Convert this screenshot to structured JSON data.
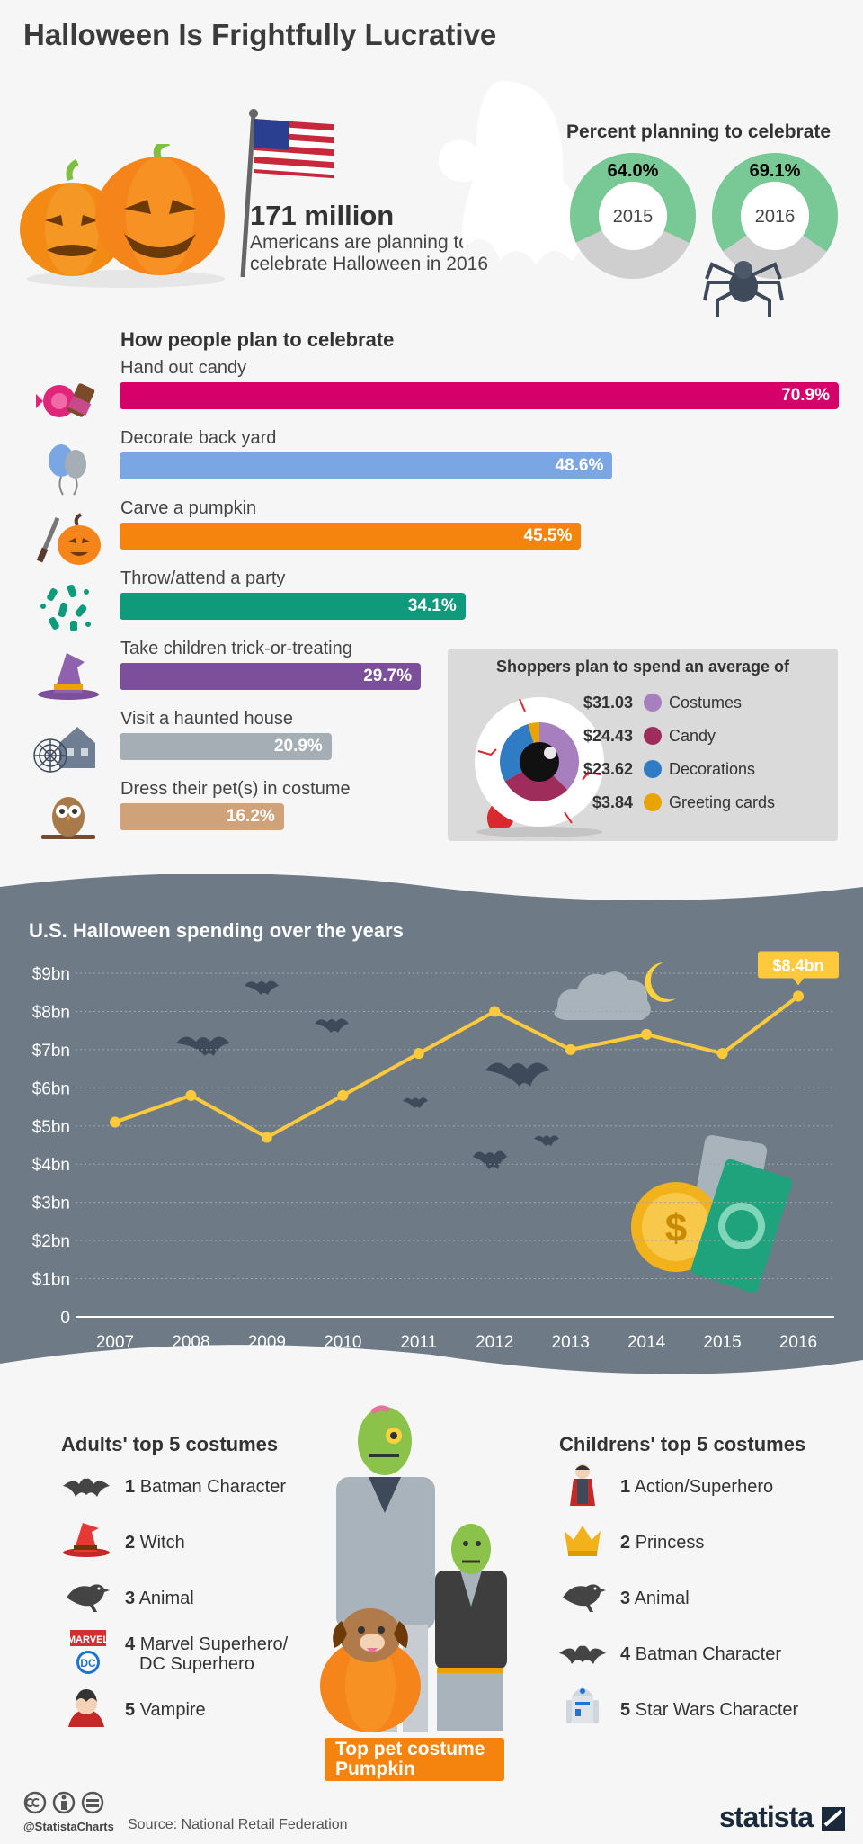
{
  "title": "Halloween Is Frightfully Lucrative",
  "headline": {
    "number": "171 million",
    "description": "Americans are planning to celebrate Halloween in 2016"
  },
  "planning": {
    "title": "Percent planning to celebrate",
    "rings": [
      {
        "year": "2015",
        "value": 64.0,
        "label": "64.0%"
      },
      {
        "year": "2016",
        "value": 69.1,
        "label": "69.1%"
      }
    ]
  },
  "celebrate": {
    "title": "How people plan to celebrate",
    "items": [
      {
        "label": "Hand out candy",
        "value": 70.9,
        "value_label": "70.9%",
        "color": "#d5006a",
        "icon": "candy-icon"
      },
      {
        "label": "Decorate back yard",
        "value": 48.6,
        "value_label": "48.6%",
        "color": "#7aa7e3",
        "icon": "balloons-icon"
      },
      {
        "label": "Carve a pumpkin",
        "value": 45.5,
        "value_label": "45.5%",
        "color": "#f5840f",
        "icon": "pumpkin-knife-icon"
      },
      {
        "label": "Throw/attend a party",
        "value": 34.1,
        "value_label": "34.1%",
        "color": "#0f9a7c",
        "icon": "confetti-icon"
      },
      {
        "label": "Take children trick-or-treating",
        "value": 29.7,
        "value_label": "29.7%",
        "color": "#7b4f9a",
        "icon": "witch-hat-icon"
      },
      {
        "label": "Visit a haunted house",
        "value": 20.9,
        "value_label": "20.9%",
        "color": "#a5adb5",
        "icon": "haunted-house-icon"
      },
      {
        "label": "Dress their pet(s) in costume",
        "value": 16.2,
        "value_label": "16.2%",
        "color": "#cfa27a",
        "icon": "owl-icon"
      }
    ]
  },
  "spending_avg": {
    "title": "Shoppers plan to spend an average of",
    "items": [
      {
        "amount": "$31.03",
        "value": 31.03,
        "name": "Costumes",
        "color": "#a77fbf"
      },
      {
        "amount": "$24.43",
        "value": 24.43,
        "name": "Candy",
        "color": "#9e2d5c"
      },
      {
        "amount": "$23.62",
        "value": 23.62,
        "name": "Decorations",
        "color": "#2f7cc4"
      },
      {
        "amount": "$3.84",
        "value": 3.84,
        "name": "Greeting cards",
        "color": "#e9a400"
      }
    ]
  },
  "chart_data": {
    "type": "line",
    "title": "U.S. Halloween spending over the years",
    "x": [
      "2007",
      "2008",
      "2009",
      "2010",
      "2011",
      "2012",
      "2013",
      "2014",
      "2015",
      "2016"
    ],
    "series": [
      {
        "values": [
          5.1,
          5.8,
          4.7,
          5.8,
          6.9,
          8.0,
          7.0,
          7.4,
          6.9,
          8.4
        ]
      }
    ],
    "ylim": [
      0,
      9
    ],
    "y_ticks": [
      "0",
      "$1bn",
      "$2bn",
      "$3bn",
      "$4bn",
      "$5bn",
      "$6bn",
      "$7bn",
      "$8bn",
      "$9bn"
    ],
    "annotation": "$8.4bn",
    "grid": true,
    "line_color": "#ffc93c"
  },
  "adult_costumes": {
    "title": "Adults' top 5 costumes",
    "items": [
      {
        "rank": "1",
        "name": "Batman Character",
        "icon": "bat-icon"
      },
      {
        "rank": "2",
        "name": "Witch",
        "icon": "witch-hat-icon"
      },
      {
        "rank": "3",
        "name": "Animal",
        "icon": "raven-icon"
      },
      {
        "rank": "4",
        "name": "Marvel Superhero/",
        "name2": "DC Superhero",
        "icon": "marvel-dc-icon",
        "logo_text": "MARVEL",
        "logo_text2": "DC"
      },
      {
        "rank": "5",
        "name": "Vampire",
        "icon": "vampire-icon"
      }
    ]
  },
  "child_costumes": {
    "title": "Childrens' top 5 costumes",
    "items": [
      {
        "rank": "1",
        "name": "Action/Superhero",
        "icon": "superhero-icon"
      },
      {
        "rank": "2",
        "name": "Princess",
        "icon": "crown-icon"
      },
      {
        "rank": "3",
        "name": "Animal",
        "icon": "raven-icon"
      },
      {
        "rank": "4",
        "name": "Batman Character",
        "icon": "bat-icon"
      },
      {
        "rank": "5",
        "name": "Star Wars Character",
        "icon": "robot-icon"
      }
    ]
  },
  "pet": {
    "line1": "Top pet costume",
    "line2": "Pumpkin"
  },
  "footer": {
    "handle": "@StatistaCharts",
    "source": "Source: National Retail Federation",
    "brand": "statista"
  }
}
